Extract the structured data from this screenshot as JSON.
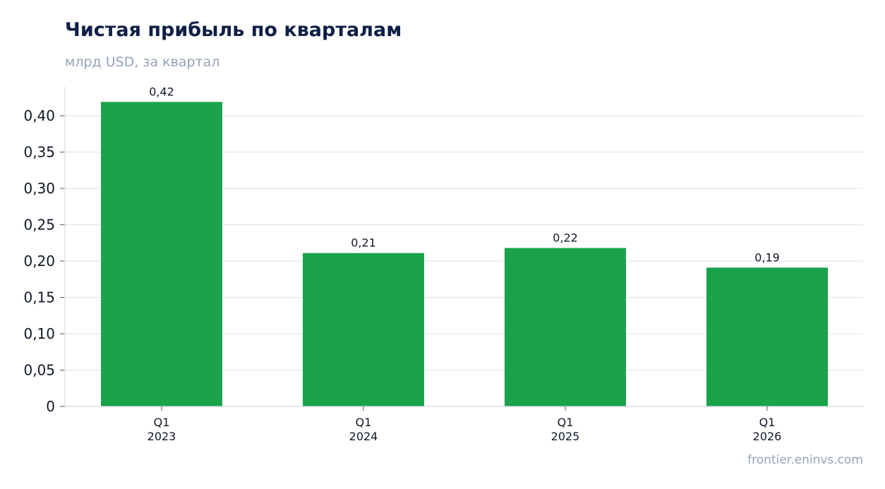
{
  "title": "Чистая прибыль по кварталам",
  "subtitle": "млрд USD, за квартал",
  "watermark": "frontier.eninvs.com",
  "colors": {
    "bar": "#1aa34a",
    "title": "#0f1f45",
    "muted": "#94a3b8",
    "grid": "#e2e6ee",
    "axis": "#d3d7df",
    "text": "#111827"
  },
  "chart_data": {
    "type": "bar",
    "categories": [
      [
        "Q1",
        "2023"
      ],
      [
        "Q1",
        "2024"
      ],
      [
        "Q1",
        "2025"
      ],
      [
        "Q1",
        "2026"
      ]
    ],
    "values": [
      0.419,
      0.211,
      0.218,
      0.191
    ],
    "data_labels": [
      "0,42",
      "0,21",
      "0,22",
      "0,19"
    ],
    "title": "Чистая прибыль по кварталам",
    "subtitle": "млрд USD, за квартал",
    "xlabel": "",
    "ylabel": "",
    "ylim": [
      0,
      0.44
    ],
    "yticks": [
      0,
      0.05,
      0.1,
      0.15,
      0.2,
      0.25,
      0.3,
      0.35,
      0.4
    ],
    "ytick_labels": [
      "0",
      "0,05",
      "0,10",
      "0,15",
      "0,20",
      "0,25",
      "0,30",
      "0,35",
      "0,40"
    ],
    "grid": true,
    "legend": "none"
  }
}
